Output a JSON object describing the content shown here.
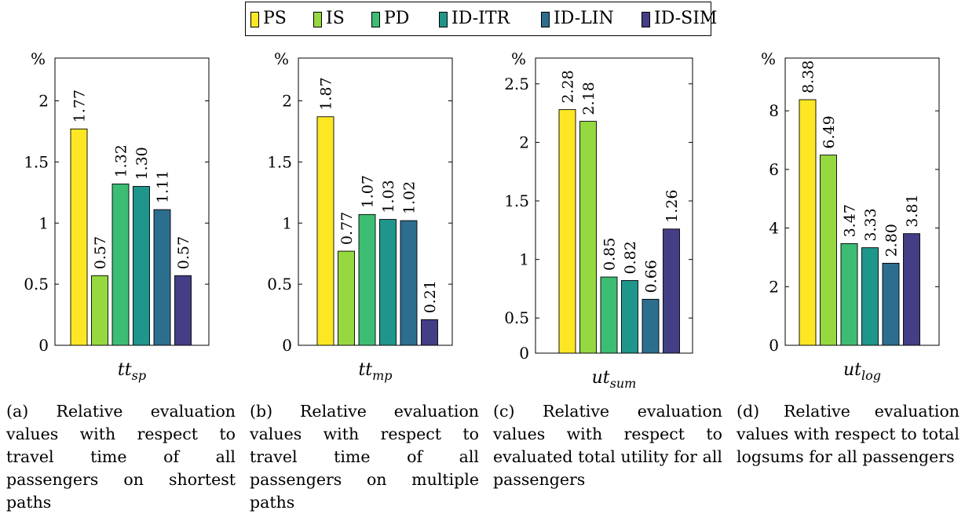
{
  "legend": {
    "entries": [
      {
        "label": "PS",
        "color": "#fde725"
      },
      {
        "label": "IS",
        "color": "#95d840"
      },
      {
        "label": "PD",
        "color": "#3dbc74"
      },
      {
        "label": "ID-ITR",
        "color": "#1f968b"
      },
      {
        "label": "ID-LIN",
        "color": "#2d6e8e"
      },
      {
        "label": "ID-SIM",
        "color": "#433e85"
      }
    ]
  },
  "chart_data": [
    {
      "type": "bar",
      "unit_label": "%",
      "category_label": "tt",
      "category_subscript": "sp",
      "series": [
        {
          "name": "PS",
          "value": 1.77,
          "label": "1.77"
        },
        {
          "name": "IS",
          "value": 0.57,
          "label": "0.57"
        },
        {
          "name": "PD",
          "value": 1.32,
          "label": "1.32"
        },
        {
          "name": "ID-ITR",
          "value": 1.3,
          "label": "1.30"
        },
        {
          "name": "ID-LIN",
          "value": 1.11,
          "label": "1.11"
        },
        {
          "name": "ID-SIM",
          "value": 0.57,
          "label": "0.57"
        }
      ],
      "ylim": [
        0,
        2.35
      ],
      "yticks": [
        0,
        0.5,
        1,
        1.5,
        2
      ],
      "ytick_labels": [
        "0",
        "0.5",
        "1",
        "1.5",
        "2"
      ],
      "caption": "(a) Relative evaluation values with respect to travel time of all passengers on shortest paths"
    },
    {
      "type": "bar",
      "unit_label": "%",
      "category_label": "tt",
      "category_subscript": "mp",
      "series": [
        {
          "name": "PS",
          "value": 1.87,
          "label": "1.87"
        },
        {
          "name": "IS",
          "value": 0.77,
          "label": "0.77"
        },
        {
          "name": "PD",
          "value": 1.07,
          "label": "1.07"
        },
        {
          "name": "ID-ITR",
          "value": 1.03,
          "label": "1.03"
        },
        {
          "name": "ID-LIN",
          "value": 1.02,
          "label": "1.02"
        },
        {
          "name": "ID-SIM",
          "value": 0.21,
          "label": "0.21"
        }
      ],
      "ylim": [
        0,
        2.35
      ],
      "yticks": [
        0,
        0.5,
        1,
        1.5,
        2
      ],
      "ytick_labels": [
        "0",
        "0.5",
        "1",
        "1.5",
        "2"
      ],
      "caption": "(b) Relative evaluation values with respect to travel time of all passengers on multiple paths"
    },
    {
      "type": "bar",
      "unit_label": "%",
      "category_label": "ut",
      "category_subscript": "sum",
      "series": [
        {
          "name": "PS",
          "value": 2.28,
          "label": "2.28"
        },
        {
          "name": "IS",
          "value": 2.18,
          "label": "2.18"
        },
        {
          "name": "PD",
          "value": 0.85,
          "label": "0.85"
        },
        {
          "name": "ID-ITR",
          "value": 0.82,
          "label": "0.82"
        },
        {
          "name": "ID-LIN",
          "value": 0.66,
          "label": "0.66"
        },
        {
          "name": "ID-SIM",
          "value": 1.26,
          "label": "1.26"
        }
      ],
      "ylim": [
        0.2,
        2.72
      ],
      "yticks": [
        0.5,
        1,
        1.5,
        2,
        2.5
      ],
      "ytick_labels": [
        "0.5",
        "1",
        "1.5",
        "2",
        "2.5"
      ],
      "extra_tick_label": "0",
      "caption": "(c) Relative evaluation values with respect to evaluated total utility for all passengers"
    },
    {
      "type": "bar",
      "unit_label": "%",
      "category_label": "ut",
      "category_subscript": "log",
      "series": [
        {
          "name": "PS",
          "value": 8.38,
          "label": "8.38"
        },
        {
          "name": "IS",
          "value": 6.49,
          "label": "6.49"
        },
        {
          "name": "PD",
          "value": 3.47,
          "label": "3.47"
        },
        {
          "name": "ID-ITR",
          "value": 3.33,
          "label": "3.33"
        },
        {
          "name": "ID-LIN",
          "value": 2.8,
          "label": "2.80"
        },
        {
          "name": "ID-SIM",
          "value": 3.81,
          "label": "3.81"
        }
      ],
      "ylim": [
        0,
        9.8
      ],
      "yticks": [
        0,
        2,
        4,
        6,
        8
      ],
      "ytick_labels": [
        "0",
        "2",
        "4",
        "6",
        "8"
      ],
      "caption": "(d) Relative evaluation values with respect to total logsums for all passengers"
    }
  ]
}
